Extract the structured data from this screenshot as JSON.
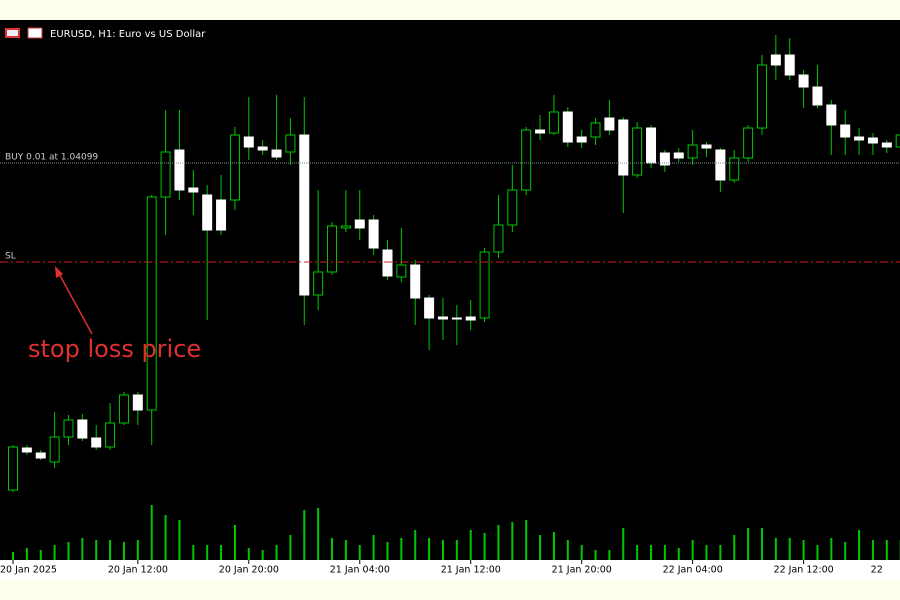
{
  "chart_data": {
    "type": "candlestick",
    "title": "EURUSD, H1:  Euro vs US Dollar",
    "categories": [
      "20 Jan 2025",
      null,
      null,
      null,
      null,
      null,
      null,
      null,
      null,
      "20 Jan 12:00",
      null,
      null,
      null,
      null,
      null,
      null,
      null,
      "20 Jan 20:00",
      null,
      null,
      null,
      null,
      null,
      null,
      null,
      "21 Jan 04:00",
      null,
      null,
      null,
      null,
      null,
      null,
      null,
      "21 Jan 12:00",
      null,
      null,
      null,
      null,
      null,
      null,
      null,
      "21 Jan 20:00",
      null,
      null,
      null,
      null,
      null,
      null,
      null,
      "22 Jan 04:00",
      null,
      null,
      null,
      null,
      null,
      null,
      null,
      "22 Jan 12:00",
      null,
      null,
      null,
      null,
      null,
      null,
      "22"
    ],
    "open": [
      1.02791,
      1.02959,
      1.02939,
      1.02903,
      1.03003,
      1.03071,
      1.02999,
      1.02963,
      1.03059,
      1.03171,
      1.03111,
      1.03963,
      1.04151,
      1.03999,
      1.03971,
      1.03951,
      1.03951,
      1.04203,
      1.04163,
      1.04151,
      1.04143,
      1.04211,
      1.03571,
      1.03663,
      1.03839,
      1.03871,
      1.03871,
      1.03751,
      1.03643,
      1.03691,
      1.03559,
      1.03483,
      1.03479,
      1.03483,
      1.03479,
      1.03743,
      1.03851,
      1.03991,
      1.04231,
      1.04219,
      1.04303,
      1.04203,
      1.04203,
      1.04279,
      1.04271,
      1.04051,
      1.04239,
      1.04139,
      1.04139,
      1.04119,
      1.04171,
      1.04151,
      1.04031,
      1.04119,
      1.04239,
      1.04531,
      1.04531,
      1.04451,
      1.04403,
      1.04331,
      1.04251,
      1.04203,
      1.04199,
      1.04179,
      1.04163
    ],
    "high": [
      1.02971,
      1.02971,
      1.02951,
      1.03103,
      1.03091,
      1.03095,
      1.03051,
      1.03139,
      1.03183,
      1.03183,
      1.03971,
      1.04311,
      1.04311,
      1.04071,
      1.04011,
      1.04051,
      1.04243,
      1.04363,
      1.04191,
      1.04371,
      1.04279,
      1.04363,
      1.03991,
      1.03863,
      1.03991,
      1.03991,
      1.03891,
      1.03791,
      1.03839,
      1.03711,
      1.03571,
      1.03559,
      1.03531,
      1.03551,
      1.03759,
      1.03971,
      1.04091,
      1.04243,
      1.04291,
      1.04371,
      1.04323,
      1.04231,
      1.04279,
      1.04351,
      1.04283,
      1.04263,
      1.04251,
      1.04151,
      1.04159,
      1.04231,
      1.04183,
      1.04159,
      1.04151,
      1.04251,
      1.04531,
      1.04611,
      1.04599,
      1.04471,
      1.04491,
      1.04351,
      1.04311,
      1.04239,
      1.04219,
      1.04191,
      1.04231
    ],
    "low": [
      1.02783,
      1.02931,
      1.02911,
      1.02879,
      1.02971,
      1.02987,
      1.02951,
      1.02951,
      1.03051,
      1.03051,
      1.02971,
      1.03811,
      1.03951,
      1.03891,
      1.03471,
      1.03811,
      1.03911,
      1.04111,
      1.04131,
      1.04111,
      1.04091,
      1.03451,
      1.03511,
      1.03651,
      1.03823,
      1.03791,
      1.03731,
      1.03631,
      1.03623,
      1.03451,
      1.03351,
      1.03391,
      1.03371,
      1.03431,
      1.03463,
      1.03719,
      1.03823,
      1.03971,
      1.04191,
      1.04211,
      1.04163,
      1.04159,
      1.04171,
      1.04211,
      1.03899,
      1.04039,
      1.04079,
      1.04063,
      1.04103,
      1.04091,
      1.04123,
      1.03983,
      1.04019,
      1.04103,
      1.04211,
      1.04431,
      1.04431,
      1.04319,
      1.04319,
      1.04131,
      1.04131,
      1.04131,
      1.04131,
      1.04139,
      1.04111
    ],
    "close": [
      1.02963,
      1.02943,
      1.02919,
      1.03003,
      1.03071,
      1.02999,
      1.02963,
      1.03059,
      1.03171,
      1.03111,
      1.03963,
      1.04143,
      1.03991,
      1.03983,
      1.03831,
      1.03831,
      1.04211,
      1.04163,
      1.04151,
      1.04123,
      1.04211,
      1.03571,
      1.03663,
      1.03847,
      1.03847,
      1.03839,
      1.03759,
      1.03647,
      1.03691,
      1.03559,
      1.03479,
      1.03475,
      1.03475,
      1.03471,
      1.03743,
      1.03851,
      1.03991,
      1.04231,
      1.04219,
      1.04303,
      1.04183,
      1.04183,
      1.04259,
      1.04231,
      1.04051,
      1.04239,
      1.04099,
      1.04091,
      1.04119,
      1.04171,
      1.04159,
      1.04031,
      1.04119,
      1.04239,
      1.04491,
      1.04491,
      1.04451,
      1.04403,
      1.04331,
      1.04251,
      1.04203,
      1.04191,
      1.04179,
      1.04163,
      1.04211
    ],
    "volume": [
      800,
      1200,
      1000,
      1500,
      1800,
      2200,
      2000,
      2000,
      1800,
      2000,
      5500,
      4500,
      4000,
      1500,
      1500,
      1500,
      3500,
      1200,
      1000,
      1500,
      2500,
      5000,
      5200,
      2200,
      2000,
      1500,
      2500,
      1800,
      2200,
      3000,
      2200,
      2000,
      2000,
      3000,
      2700,
      3500,
      3800,
      4000,
      2500,
      2800,
      2000,
      1500,
      1000,
      1000,
      3200,
      1500,
      1500,
      1500,
      1200,
      2000,
      1500,
      1500,
      2500,
      3200,
      3200,
      2200,
      2200,
      2000,
      1500,
      2200,
      1800,
      3000,
      2000,
      2000,
      2000
    ],
    "ylim": [
      1.02751,
      1.04671
    ],
    "volume_ylim": [
      0,
      6000
    ],
    "up_color": "#00c800",
    "down_color": "#ffffff",
    "wick_color": "#00c800",
    "volume_color": "#00c800",
    "levels": [
      {
        "label": "BUY 0.01 at 1.04099",
        "price": 1.04099,
        "color": "#7a9a9a"
      },
      {
        "label": "SL",
        "price": 1.03703,
        "color": "#d02020"
      }
    ],
    "annotation": "stop loss price"
  }
}
